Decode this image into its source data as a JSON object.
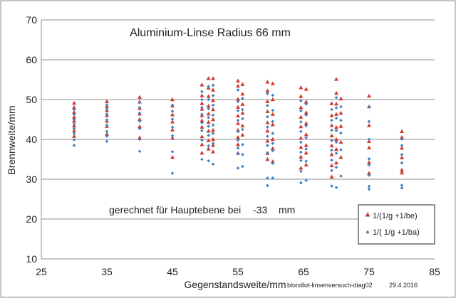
{
  "chart_data": {
    "type": "scatter",
    "title": "Aluminium-Linse Radius 66 mm",
    "xlabel": "Gegenstandsweite/mm",
    "ylabel": "Brennweite/mm",
    "xlim": [
      25,
      85
    ],
    "ylim": [
      10,
      70
    ],
    "xticks": [
      25,
      35,
      45,
      55,
      65,
      75,
      85
    ],
    "yticks": [
      10,
      20,
      30,
      40,
      50,
      60,
      70
    ],
    "grid": "horizontal",
    "legend_placement": "bottom-right",
    "annotation": "gerechnet für Hauptebene bei",
    "annotation_value": "-33",
    "annotation_unit": "mm",
    "footer_file": "blondlot-linsenversuch-diag02",
    "footer_date": "29.4.2016",
    "colors": {
      "series1": "#d03a30",
      "series2": "#3f7fc0"
    },
    "series": [
      {
        "name": "1/(1/g +1/be)",
        "marker": "triangle",
        "points": [
          [
            30,
            49.1
          ],
          [
            30,
            48.0
          ],
          [
            30,
            46.8
          ],
          [
            30,
            45.6
          ],
          [
            30,
            44.6
          ],
          [
            30,
            43.4
          ],
          [
            30,
            42.2
          ],
          [
            30,
            40.8
          ],
          [
            35,
            49.5
          ],
          [
            35,
            48.3
          ],
          [
            35,
            47.2
          ],
          [
            35,
            46.0
          ],
          [
            35,
            44.6
          ],
          [
            35,
            43.3
          ],
          [
            35,
            41.3
          ],
          [
            40,
            50.6
          ],
          [
            40,
            49.4
          ],
          [
            40,
            47.8
          ],
          [
            40,
            46.4
          ],
          [
            40,
            45.0
          ],
          [
            40,
            43.2
          ],
          [
            40,
            40.4
          ],
          [
            45,
            50.0
          ],
          [
            45,
            48.4
          ],
          [
            45,
            46.2
          ],
          [
            45,
            44.4
          ],
          [
            45,
            42.4
          ],
          [
            45,
            40.3
          ],
          [
            45,
            35.5
          ],
          [
            49.5,
            53.7
          ],
          [
            49.5,
            51.0
          ],
          [
            49.5,
            49.0
          ],
          [
            49.5,
            47.6
          ],
          [
            49.5,
            46.0
          ],
          [
            49.5,
            44.7
          ],
          [
            49.5,
            43.1
          ],
          [
            49.5,
            40.7
          ],
          [
            49.5,
            38.7
          ],
          [
            49.5,
            36.6
          ],
          [
            50.5,
            55.3
          ],
          [
            50.5,
            52.9
          ],
          [
            50.5,
            50.8
          ],
          [
            50.5,
            48.4
          ],
          [
            50.5,
            46.4
          ],
          [
            50.5,
            44.3
          ],
          [
            50.5,
            42.1
          ],
          [
            50.5,
            39.7
          ],
          [
            50.5,
            37.6
          ],
          [
            51.2,
            55.3
          ],
          [
            51.2,
            52.4
          ],
          [
            51.2,
            49.8
          ],
          [
            51.2,
            47.5
          ],
          [
            51.2,
            45.0
          ],
          [
            51.2,
            42.3
          ],
          [
            51.2,
            40.0
          ],
          [
            51.2,
            38.5
          ],
          [
            51.2,
            36.9
          ],
          [
            55,
            54.7
          ],
          [
            55,
            53.4
          ],
          [
            55,
            50.1
          ],
          [
            55,
            48.1
          ],
          [
            55,
            45.9
          ],
          [
            55,
            44.0
          ],
          [
            55,
            42.3
          ],
          [
            55,
            40.5
          ],
          [
            55,
            38.7
          ],
          [
            55,
            36.5
          ],
          [
            55.7,
            53.8
          ],
          [
            55.7,
            51.4
          ],
          [
            55.7,
            48.8
          ],
          [
            55.7,
            46.6
          ],
          [
            55.7,
            43.4
          ],
          [
            55.7,
            41.1
          ],
          [
            59.5,
            54.4
          ],
          [
            59.5,
            52.2
          ],
          [
            59.5,
            49.5
          ],
          [
            59.5,
            47.0
          ],
          [
            59.5,
            44.2
          ],
          [
            59.5,
            42.1
          ],
          [
            59.5,
            39.6
          ],
          [
            59.5,
            36.5
          ],
          [
            59.5,
            35.0
          ],
          [
            60.3,
            54.0
          ],
          [
            60.3,
            50.0
          ],
          [
            60.3,
            46.3
          ],
          [
            60.3,
            43.7
          ],
          [
            60.3,
            40.0
          ],
          [
            60.3,
            37.7
          ],
          [
            60.3,
            34.4
          ],
          [
            64.6,
            53.0
          ],
          [
            64.6,
            50.8
          ],
          [
            64.6,
            48.0
          ],
          [
            64.6,
            45.6
          ],
          [
            64.6,
            43.2
          ],
          [
            64.6,
            40.3
          ],
          [
            64.6,
            38.0
          ],
          [
            64.6,
            35.6
          ],
          [
            64.6,
            32.8
          ],
          [
            65.4,
            52.6
          ],
          [
            65.4,
            49.4
          ],
          [
            65.4,
            46.7
          ],
          [
            65.4,
            44.0
          ],
          [
            65.4,
            41.2
          ],
          [
            65.4,
            38.5
          ],
          [
            65.4,
            36.6
          ],
          [
            65.4,
            33.6
          ],
          [
            69.3,
            49.0
          ],
          [
            69.3,
            46.0
          ],
          [
            69.3,
            43.5
          ],
          [
            69.3,
            40.9
          ],
          [
            69.3,
            38.4
          ],
          [
            69.3,
            36.2
          ],
          [
            69.3,
            33.4
          ],
          [
            69.3,
            30.6
          ],
          [
            70.0,
            55.1
          ],
          [
            70.0,
            51.6
          ],
          [
            70.0,
            48.9
          ],
          [
            70.0,
            46.3
          ],
          [
            70.0,
            43.0
          ],
          [
            70.0,
            40.0
          ],
          [
            70.0,
            37.5
          ],
          [
            70.0,
            34.1
          ],
          [
            70.7,
            50.2
          ],
          [
            70.7,
            46.6
          ],
          [
            70.7,
            43.3
          ],
          [
            70.7,
            39.3
          ],
          [
            70.7,
            35.5
          ],
          [
            75,
            50.9
          ],
          [
            75,
            48.2
          ],
          [
            75,
            43.5
          ],
          [
            75,
            39.5
          ],
          [
            75,
            37.9
          ],
          [
            75,
            34.2
          ],
          [
            75,
            31.5
          ],
          [
            80,
            42.0
          ],
          [
            80,
            40.5
          ],
          [
            80,
            37.8
          ],
          [
            80,
            35.4
          ],
          [
            80,
            32.3
          ],
          [
            80,
            31.6
          ]
        ]
      },
      {
        "name": "1/( 1/g +1/ba)",
        "marker": "diamond",
        "points": [
          [
            30,
            47.5
          ],
          [
            30,
            46.3
          ],
          [
            30,
            45.0
          ],
          [
            30,
            43.8
          ],
          [
            30,
            42.7
          ],
          [
            30,
            41.5
          ],
          [
            30,
            39.9
          ],
          [
            30,
            38.5
          ],
          [
            35,
            48.7
          ],
          [
            35,
            47.6
          ],
          [
            35,
            46.3
          ],
          [
            35,
            44.9
          ],
          [
            35,
            43.6
          ],
          [
            35,
            42.0
          ],
          [
            35,
            40.8
          ],
          [
            35,
            39.5
          ],
          [
            40,
            49.3
          ],
          [
            40,
            48.0
          ],
          [
            40,
            46.6
          ],
          [
            40,
            44.6
          ],
          [
            40,
            42.7
          ],
          [
            40,
            40.0
          ],
          [
            40,
            37.0
          ],
          [
            45,
            48.6
          ],
          [
            45,
            47.1
          ],
          [
            45,
            45.1
          ],
          [
            45,
            43.1
          ],
          [
            45,
            40.9
          ],
          [
            45,
            36.9
          ],
          [
            45,
            31.5
          ],
          [
            49.5,
            52.0
          ],
          [
            49.5,
            50.0
          ],
          [
            49.5,
            48.0
          ],
          [
            49.5,
            46.3
          ],
          [
            49.5,
            44.2
          ],
          [
            49.5,
            42.2
          ],
          [
            49.5,
            39.8
          ],
          [
            49.5,
            35.0
          ],
          [
            50.5,
            53.3
          ],
          [
            50.5,
            50.0
          ],
          [
            50.5,
            47.7
          ],
          [
            50.5,
            45.5
          ],
          [
            50.5,
            43.3
          ],
          [
            50.5,
            41.0
          ],
          [
            50.5,
            38.4
          ],
          [
            50.5,
            34.6
          ],
          [
            51.2,
            53.6
          ],
          [
            51.2,
            51.0
          ],
          [
            51.2,
            48.6
          ],
          [
            51.2,
            46.1
          ],
          [
            51.2,
            43.6
          ],
          [
            51.2,
            41.5
          ],
          [
            51.2,
            39.0
          ],
          [
            51.2,
            33.8
          ],
          [
            55,
            52.4
          ],
          [
            55,
            49.5
          ],
          [
            55,
            47.2
          ],
          [
            55,
            44.8
          ],
          [
            55,
            42.0
          ],
          [
            55,
            39.8
          ],
          [
            55,
            37.8
          ],
          [
            55,
            36.5
          ],
          [
            55,
            32.8
          ],
          [
            55.7,
            50.3
          ],
          [
            55.7,
            47.5
          ],
          [
            55.7,
            45.2
          ],
          [
            55.7,
            42.5
          ],
          [
            55.7,
            38.7
          ],
          [
            55.7,
            36.2
          ],
          [
            55.7,
            33.2
          ],
          [
            59.5,
            51.5
          ],
          [
            59.5,
            48.5
          ],
          [
            59.5,
            45.7
          ],
          [
            59.5,
            43.1
          ],
          [
            59.5,
            40.8
          ],
          [
            59.5,
            38.5
          ],
          [
            59.5,
            36.6
          ],
          [
            59.5,
            30.3
          ],
          [
            59.5,
            28.4
          ],
          [
            60.3,
            51.1
          ],
          [
            60.3,
            47.3
          ],
          [
            60.3,
            44.5
          ],
          [
            60.3,
            41.5
          ],
          [
            60.3,
            39.0
          ],
          [
            60.3,
            37.2
          ],
          [
            60.3,
            34.0
          ],
          [
            60.3,
            30.3
          ],
          [
            64.6,
            49.7
          ],
          [
            64.6,
            47.2
          ],
          [
            64.6,
            44.4
          ],
          [
            64.6,
            42.0
          ],
          [
            64.6,
            39.3
          ],
          [
            64.6,
            36.8
          ],
          [
            64.6,
            34.7
          ],
          [
            64.6,
            32.0
          ],
          [
            64.6,
            29.1
          ],
          [
            65.4,
            48.9
          ],
          [
            65.4,
            46.1
          ],
          [
            65.4,
            43.4
          ],
          [
            65.4,
            40.4
          ],
          [
            65.4,
            37.6
          ],
          [
            65.4,
            34.5
          ],
          [
            65.4,
            29.7
          ],
          [
            69.3,
            47.5
          ],
          [
            69.3,
            44.8
          ],
          [
            69.3,
            42.3
          ],
          [
            69.3,
            39.7
          ],
          [
            69.3,
            37.3
          ],
          [
            69.3,
            34.8
          ],
          [
            69.3,
            32.2
          ],
          [
            69.3,
            28.3
          ],
          [
            70.0,
            50.5
          ],
          [
            70.0,
            47.9
          ],
          [
            70.0,
            45.3
          ],
          [
            70.0,
            42.2
          ],
          [
            70.0,
            39.3
          ],
          [
            70.0,
            36.5
          ],
          [
            70.0,
            33.0
          ],
          [
            70.0,
            27.9
          ],
          [
            70.7,
            48.2
          ],
          [
            70.7,
            44.8
          ],
          [
            70.7,
            41.6
          ],
          [
            70.7,
            37.4
          ],
          [
            70.7,
            30.8
          ],
          [
            75,
            48.2
          ],
          [
            75,
            44.5
          ],
          [
            75,
            40.0
          ],
          [
            75,
            35.1
          ],
          [
            75,
            33.6
          ],
          [
            75,
            31.0
          ],
          [
            75,
            28.2
          ],
          [
            75,
            27.5
          ],
          [
            80,
            40.1
          ],
          [
            80,
            38.5
          ],
          [
            80,
            36.2
          ],
          [
            80,
            34.1
          ],
          [
            80,
            28.5
          ],
          [
            80,
            27.8
          ]
        ]
      }
    ]
  }
}
